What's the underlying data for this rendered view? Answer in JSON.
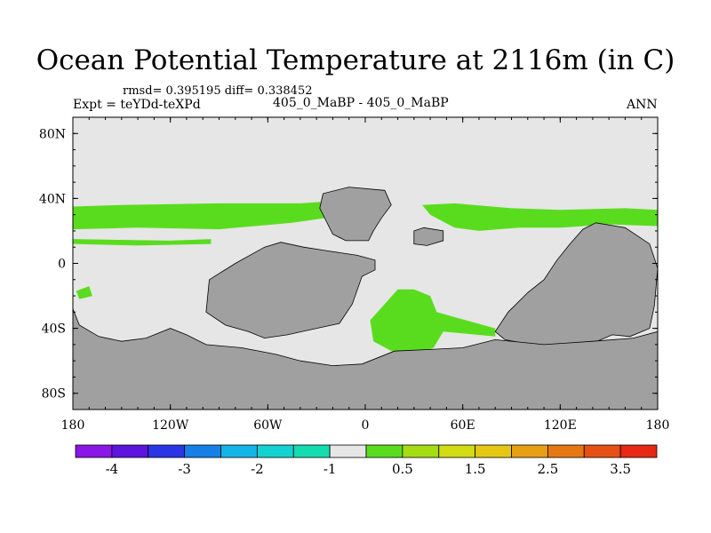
{
  "header": {
    "title": "Ocean Potential Temperature at 2116m (in C)",
    "stats": "rmsd= 0.395195 diff= 0.338452",
    "experiment": "Expt = teYDd-teXPd",
    "subtitle": "405_0_MaBP - 405_0_MaBP",
    "season": "ANN"
  },
  "chart_data": {
    "type": "heatmap",
    "title": "Ocean Potential Temperature at 2116m (in C)",
    "xlabel": "",
    "ylabel": "",
    "xlim": [
      -180,
      180
    ],
    "ylim": [
      -90,
      90
    ],
    "x_ticks": [
      {
        "value": -180,
        "label": "180"
      },
      {
        "value": -120,
        "label": "120W"
      },
      {
        "value": -60,
        "label": "60W"
      },
      {
        "value": 0,
        "label": "0"
      },
      {
        "value": 60,
        "label": "60E"
      },
      {
        "value": 120,
        "label": "120E"
      },
      {
        "value": 180,
        "label": "180"
      }
    ],
    "y_ticks": [
      {
        "value": 80,
        "label": "80N"
      },
      {
        "value": 40,
        "label": "40N"
      },
      {
        "value": 0,
        "label": "0"
      },
      {
        "value": -40,
        "label": "40S"
      },
      {
        "value": -80,
        "label": "80S"
      }
    ],
    "ocean_background_class": "-0.5 to 0.5 (no significant difference)",
    "land_mask_color": "#a0a0a0",
    "colorbar": {
      "colors": [
        "#8a17e6",
        "#5d14dc",
        "#2a35e6",
        "#1680e6",
        "#14b4e6",
        "#14d2d2",
        "#14dcb0",
        "#e6e6e6",
        "#5adc1e",
        "#a5dc14",
        "#d2dc14",
        "#e6c814",
        "#e6a014",
        "#e67814",
        "#e65014",
        "#e62814"
      ],
      "labels": [
        {
          "after_box": 1,
          "label": "-4"
        },
        {
          "after_box": 3,
          "label": "-3"
        },
        {
          "after_box": 5,
          "label": "-2"
        },
        {
          "after_box": 7,
          "label": "-1"
        },
        {
          "after_box": 9,
          "label": "0.5"
        },
        {
          "after_box": 11,
          "label": "1.5"
        },
        {
          "after_box": 13,
          "label": "2.5"
        },
        {
          "after_box": 15,
          "label": "3.5"
        }
      ]
    },
    "land_regions": [
      {
        "name": "north-america",
        "polygon": [
          [
            -98,
            -30
          ],
          [
            -96,
            -10
          ],
          [
            -80,
            0
          ],
          [
            -62,
            10
          ],
          [
            -52,
            13
          ],
          [
            -38,
            10
          ],
          [
            -25,
            8
          ],
          [
            -5,
            5
          ],
          [
            6,
            2
          ],
          [
            6,
            -4
          ],
          [
            -2,
            -8
          ],
          [
            -8,
            -25
          ],
          [
            -16,
            -37
          ],
          [
            -30,
            -40
          ],
          [
            -48,
            -44
          ],
          [
            -62,
            -46
          ],
          [
            -72,
            -42
          ],
          [
            -86,
            -38
          ]
        ]
      },
      {
        "name": "europe",
        "polygon": [
          [
            -28,
            34
          ],
          [
            -26,
            43
          ],
          [
            -10,
            47
          ],
          [
            12,
            45
          ],
          [
            16,
            36
          ],
          [
            10,
            28
          ],
          [
            5,
            20
          ],
          [
            2,
            14
          ],
          [
            -12,
            14
          ],
          [
            -20,
            18
          ],
          [
            -24,
            26
          ]
        ]
      },
      {
        "name": "africa-block",
        "polygon": [
          [
            30,
            20
          ],
          [
            30,
            12
          ],
          [
            38,
            11
          ],
          [
            48,
            14
          ],
          [
            48,
            20
          ],
          [
            36,
            22
          ]
        ]
      },
      {
        "name": "asia-australia",
        "polygon": [
          [
            180,
            -3
          ],
          [
            178,
            -26
          ],
          [
            175,
            -40
          ],
          [
            163,
            -45
          ],
          [
            152,
            -44
          ],
          [
            138,
            -50
          ],
          [
            114,
            -53
          ],
          [
            102,
            -50
          ],
          [
            86,
            -47
          ],
          [
            80,
            -42
          ],
          [
            88,
            -30
          ],
          [
            100,
            -18
          ],
          [
            110,
            -10
          ],
          [
            118,
            2
          ],
          [
            126,
            12
          ],
          [
            134,
            21
          ],
          [
            142,
            25
          ],
          [
            160,
            22
          ],
          [
            175,
            12
          ]
        ]
      },
      {
        "name": "southern-land",
        "polygon": [
          [
            -180,
            -28
          ],
          [
            -176,
            -38
          ],
          [
            -164,
            -45
          ],
          [
            -150,
            -48
          ],
          [
            -135,
            -46
          ],
          [
            -120,
            -40
          ],
          [
            -110,
            -44
          ],
          [
            -98,
            -50
          ],
          [
            -76,
            -52
          ],
          [
            -55,
            -56
          ],
          [
            -40,
            -60
          ],
          [
            -20,
            -63
          ],
          [
            -2,
            -62
          ],
          [
            18,
            -54
          ],
          [
            40,
            -53
          ],
          [
            60,
            -52
          ],
          [
            80,
            -47
          ],
          [
            110,
            -50
          ],
          [
            140,
            -48
          ],
          [
            165,
            -46
          ],
          [
            180,
            -42
          ],
          [
            180,
            -90
          ],
          [
            -180,
            -90
          ]
        ]
      }
    ],
    "positive_diff_regions": [
      {
        "class": "0.5 to 1.5",
        "polygon": [
          [
            -180,
            35
          ],
          [
            -150,
            36
          ],
          [
            -90,
            37
          ],
          [
            -40,
            37
          ],
          [
            -25,
            38
          ],
          [
            -24,
            28
          ],
          [
            -45,
            25
          ],
          [
            -90,
            21
          ],
          [
            -140,
            22
          ],
          [
            -180,
            21
          ]
        ]
      },
      {
        "class": "0.5 to 1.5",
        "polygon": [
          [
            35,
            36
          ],
          [
            55,
            37
          ],
          [
            90,
            34
          ],
          [
            120,
            33
          ],
          [
            160,
            34
          ],
          [
            180,
            33
          ],
          [
            180,
            23
          ],
          [
            150,
            24
          ],
          [
            120,
            22
          ],
          [
            95,
            22
          ],
          [
            70,
            20
          ],
          [
            55,
            22
          ],
          [
            40,
            30
          ]
        ]
      },
      {
        "class": "0.5 to 1.5",
        "polygon": [
          [
            -180,
            15
          ],
          [
            -120,
            14
          ],
          [
            -95,
            15
          ],
          [
            -95,
            12
          ],
          [
            -140,
            11
          ],
          [
            -180,
            12
          ]
        ]
      },
      {
        "class": "0.5 to 1.5",
        "polygon": [
          [
            20,
            -16
          ],
          [
            30,
            -16
          ],
          [
            40,
            -20
          ],
          [
            44,
            -30
          ],
          [
            62,
            -35
          ],
          [
            80,
            -40
          ],
          [
            80,
            -45
          ],
          [
            48,
            -42
          ],
          [
            42,
            -52
          ],
          [
            35,
            -55
          ],
          [
            18,
            -55
          ],
          [
            5,
            -48
          ],
          [
            3,
            -35
          ]
        ]
      },
      {
        "class": "0.5 to 1.5",
        "polygon": [
          [
            -178,
            -17
          ],
          [
            -170,
            -14
          ],
          [
            -168,
            -20
          ],
          [
            -176,
            -22
          ]
        ]
      }
    ],
    "contour_level": 0.0
  }
}
